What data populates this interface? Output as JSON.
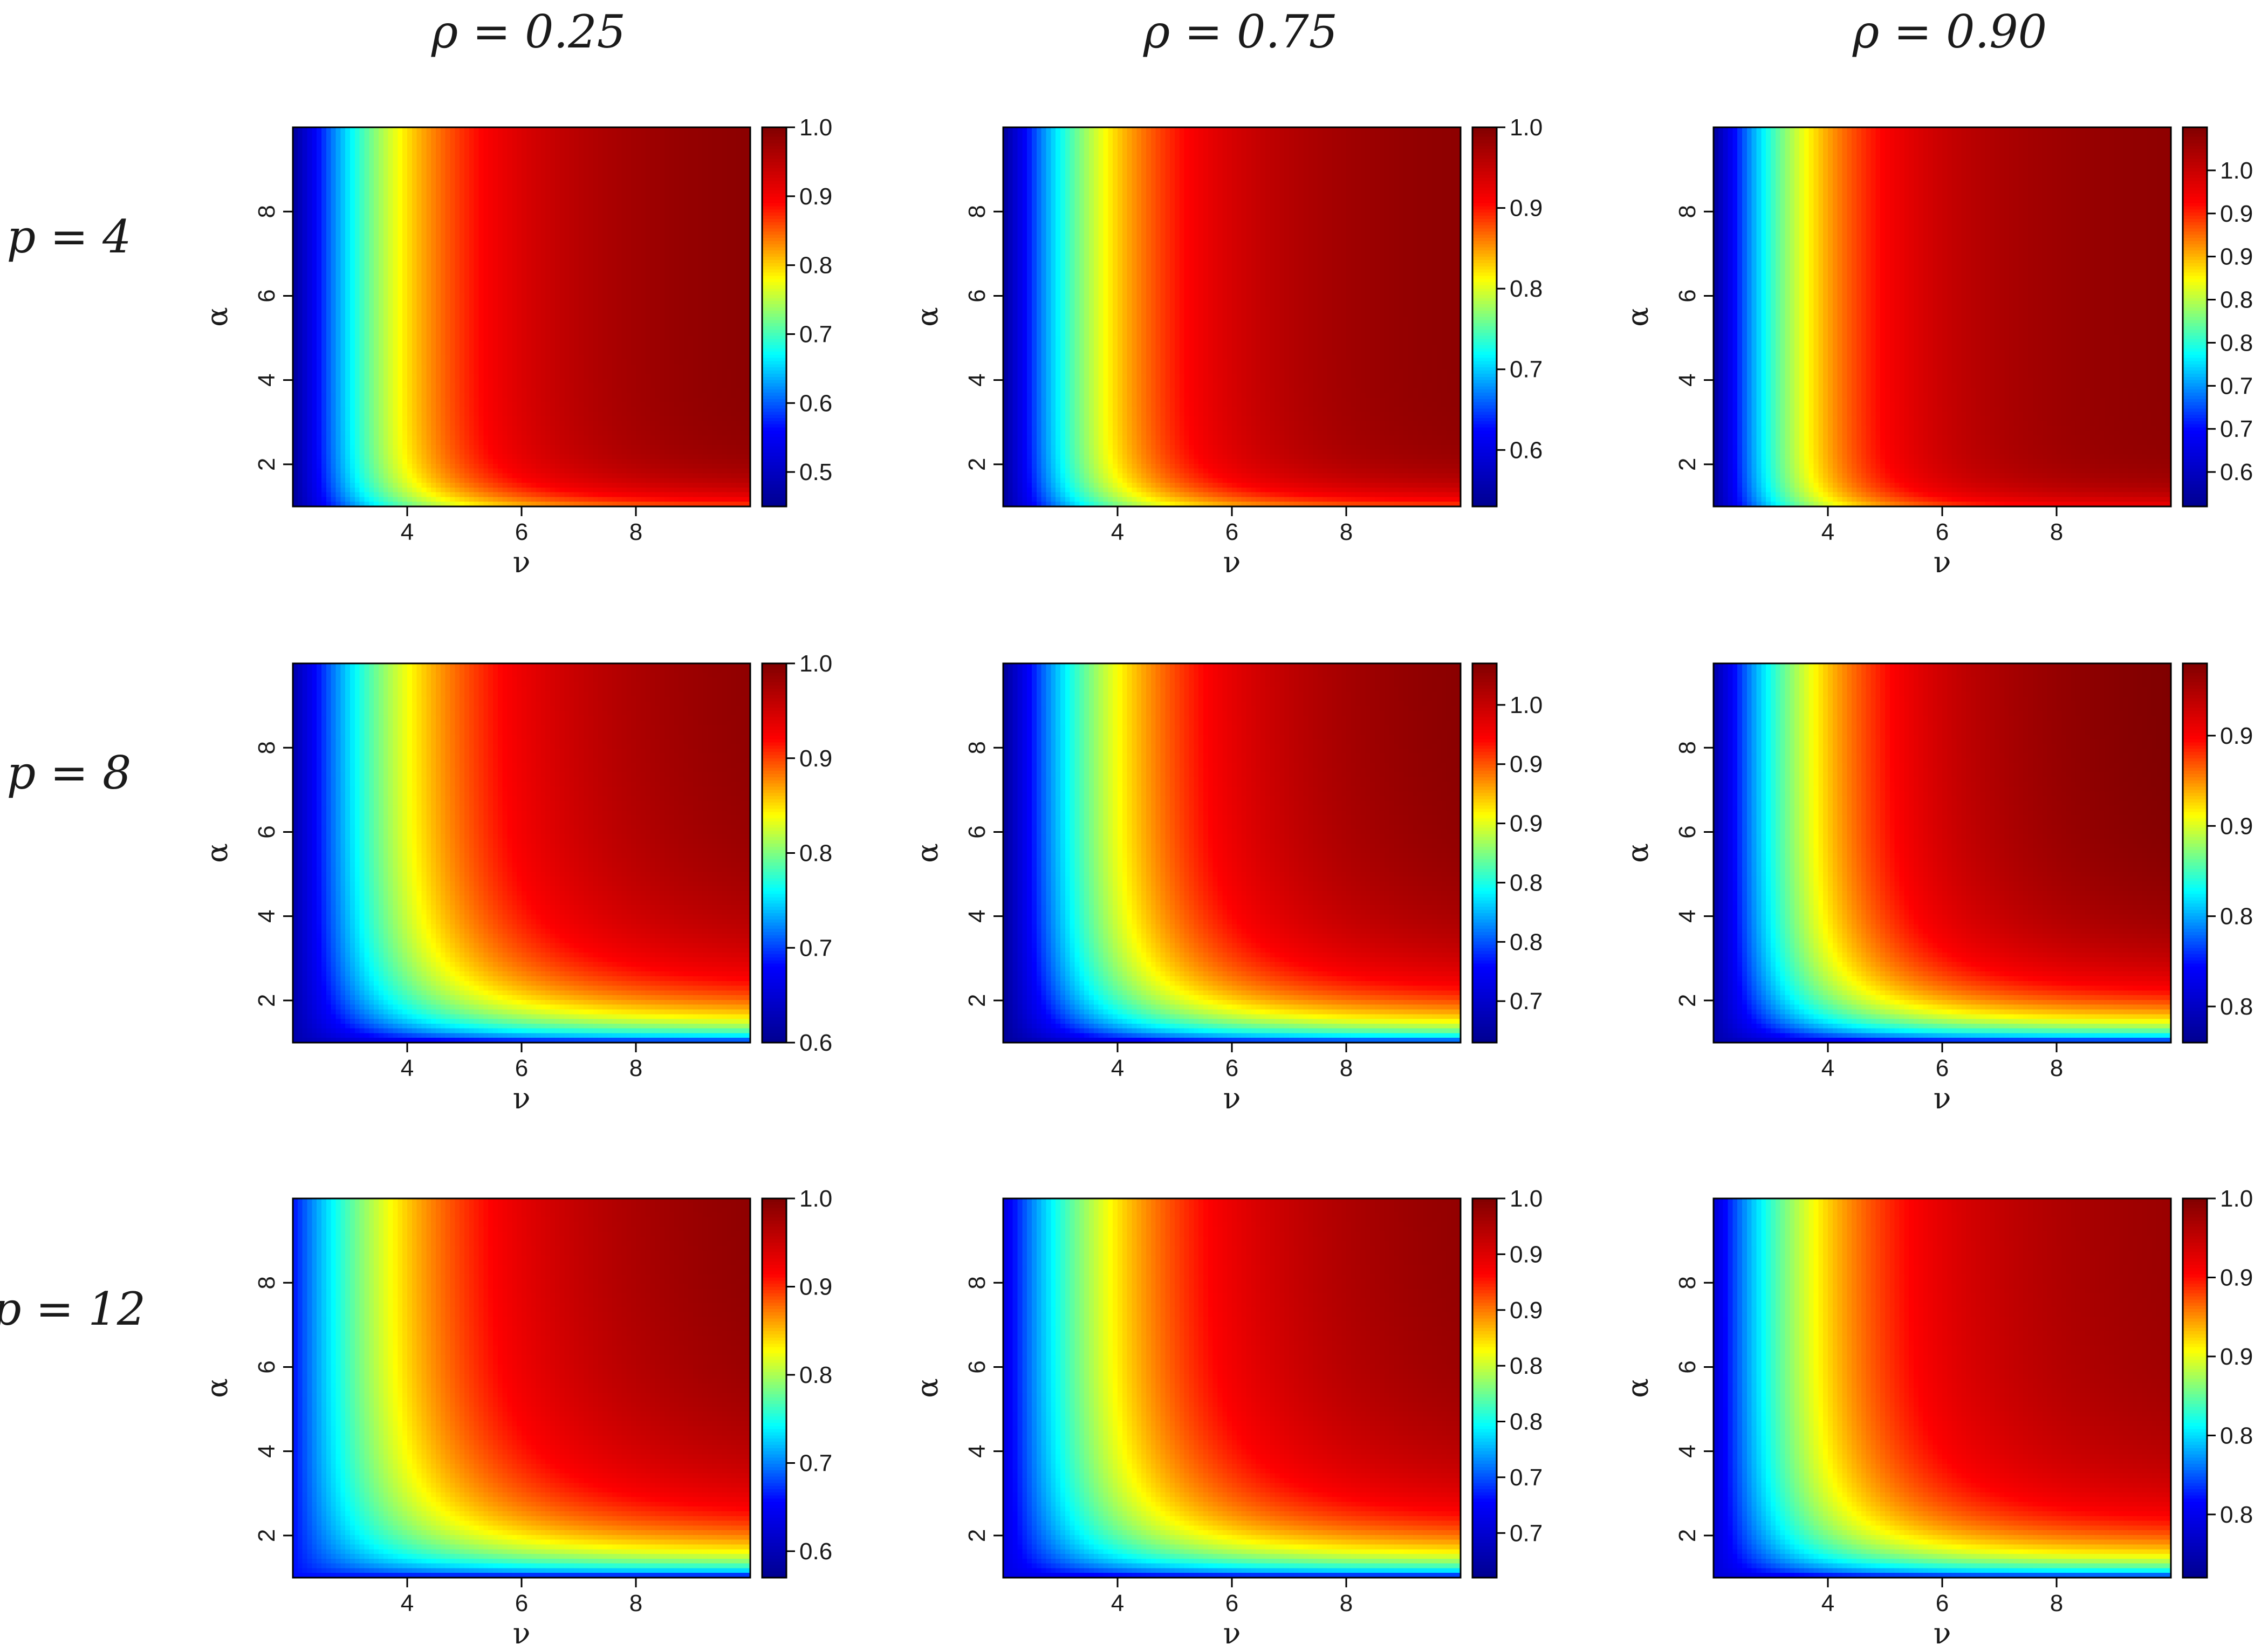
{
  "figure": {
    "columns": [
      "ρ = 0.25",
      "ρ = 0.75",
      "ρ = 0.90"
    ],
    "rows": [
      "p = 4",
      "p = 8",
      "p = 12"
    ]
  },
  "colors": {
    "colormap": [
      "#00008f",
      "#0000ff",
      "#00ffff",
      "#ffff00",
      "#ff0000",
      "#800000"
    ],
    "frame": "#000000",
    "background": "#ffffff"
  },
  "chart_data": [
    {
      "type": "heatmap",
      "row": "p = 4",
      "column": "ρ = 0.25",
      "xlabel": "ν",
      "ylabel": "α",
      "x_range": [
        2,
        10
      ],
      "y_range": [
        1,
        10
      ],
      "x_ticks": [
        "4",
        "6",
        "8"
      ],
      "y_ticks": [
        "2",
        "4",
        "6",
        "8"
      ],
      "colorbar": {
        "ticks": [
          "0.5",
          "0.6",
          "0.7",
          "0.8",
          "0.9",
          "1.0"
        ],
        "tick_values": [
          0.5,
          0.6,
          0.7,
          0.8,
          0.9,
          1.0
        ],
        "min": 0.45,
        "max": 1.0
      },
      "corner_values": {
        "nu2_alpha10": 0.46,
        "nu10_alpha10": 0.99,
        "nu10_alpha1": 0.86
      },
      "nu_half": 2.1,
      "alpha_half": 0.5,
      "alpha_floor": 0.0
    },
    {
      "type": "heatmap",
      "row": "p = 4",
      "column": "ρ = 0.75",
      "xlabel": "ν",
      "ylabel": "α",
      "x_range": [
        2,
        10
      ],
      "y_range": [
        1,
        10
      ],
      "x_ticks": [
        "4",
        "6",
        "8"
      ],
      "y_ticks": [
        "2",
        "4",
        "6",
        "8"
      ],
      "colorbar": {
        "ticks": [
          "0.6",
          "0.7",
          "0.8",
          "0.9",
          "1.0"
        ],
        "tick_values": [
          0.6,
          0.7,
          0.8,
          0.9,
          1.0
        ],
        "min": 0.53,
        "max": 1.0
      },
      "corner_values": {
        "nu2_alpha10": 0.54,
        "nu10_alpha10": 0.99,
        "nu10_alpha1": 0.88
      },
      "nu_half": 2.0,
      "alpha_half": 0.5,
      "alpha_floor": 0.0
    },
    {
      "type": "heatmap",
      "row": "p = 4",
      "column": "ρ = 0.90",
      "xlabel": "ν",
      "ylabel": "α",
      "x_range": [
        2,
        10
      ],
      "y_range": [
        1,
        10
      ],
      "x_ticks": [
        "4",
        "6",
        "8"
      ],
      "y_ticks": [
        "2",
        "4",
        "6",
        "8"
      ],
      "colorbar": {
        "ticks": [
          "0.6",
          "0.7",
          "0.7",
          "0.8",
          "0.8",
          "0.9",
          "0.9",
          "1.0"
        ],
        "tick_values": [
          0.6,
          0.65,
          0.7,
          0.75,
          0.8,
          0.85,
          0.9,
          0.95
        ],
        "min": 0.56,
        "max": 1.0
      },
      "corner_values": {
        "nu2_alpha10": 0.57,
        "nu10_alpha10": 0.99,
        "nu10_alpha1": 0.92
      },
      "nu_half": 1.8,
      "alpha_half": 0.4,
      "alpha_floor": 0.0
    },
    {
      "type": "heatmap",
      "row": "p = 8",
      "column": "ρ = 0.25",
      "xlabel": "ν",
      "ylabel": "α",
      "x_range": [
        2,
        10
      ],
      "y_range": [
        1,
        10
      ],
      "x_ticks": [
        "4",
        "6",
        "8"
      ],
      "y_ticks": [
        "2",
        "4",
        "6",
        "8"
      ],
      "colorbar": {
        "ticks": [
          "0.6",
          "0.7",
          "0.8",
          "0.9",
          "1.0"
        ],
        "tick_values": [
          0.6,
          0.7,
          0.8,
          0.9,
          1.0
        ],
        "min": 0.6,
        "max": 1.0
      },
      "corner_values": {
        "nu2_alpha10": 0.62,
        "nu10_alpha10": 0.99,
        "nu10_alpha1": 0.64
      },
      "nu_half": 2.4,
      "alpha_half": 1.5,
      "alpha_floor": 0.35
    },
    {
      "type": "heatmap",
      "row": "p = 8",
      "column": "ρ = 0.75",
      "xlabel": "ν",
      "ylabel": "α",
      "x_range": [
        2,
        10
      ],
      "y_range": [
        1,
        10
      ],
      "x_ticks": [
        "4",
        "6",
        "8"
      ],
      "y_ticks": [
        "2",
        "4",
        "6",
        "8"
      ],
      "colorbar": {
        "ticks": [
          "0.7",
          "0.8",
          "0.8",
          "0.9",
          "0.9",
          "1.0"
        ],
        "tick_values": [
          0.7,
          0.75,
          0.8,
          0.85,
          0.9,
          0.95
        ],
        "min": 0.665,
        "max": 0.985
      },
      "corner_values": {
        "nu2_alpha10": 0.67,
        "nu10_alpha10": 0.98,
        "nu10_alpha1": 0.7
      },
      "nu_half": 2.3,
      "alpha_half": 1.4,
      "alpha_floor": 0.35
    },
    {
      "type": "heatmap",
      "row": "p = 8",
      "column": "ρ = 0.90",
      "xlabel": "ν",
      "ylabel": "α",
      "x_range": [
        2,
        10
      ],
      "y_range": [
        1,
        10
      ],
      "x_ticks": [
        "4",
        "6",
        "8"
      ],
      "y_ticks": [
        "2",
        "4",
        "6",
        "8"
      ],
      "colorbar": {
        "ticks": [
          "0.8",
          "0.8",
          "0.9",
          "0.9"
        ],
        "tick_values": [
          0.8,
          0.85,
          0.9,
          0.95
        ],
        "min": 0.78,
        "max": 0.99
      },
      "corner_values": {
        "nu2_alpha10": 0.79,
        "nu10_alpha10": 0.99,
        "nu10_alpha1": 0.8
      },
      "nu_half": 2.1,
      "alpha_half": 1.3,
      "alpha_floor": 0.3
    },
    {
      "type": "heatmap",
      "row": "p = 12",
      "column": "ρ = 0.25",
      "xlabel": "ν",
      "ylabel": "α",
      "x_range": [
        2,
        10
      ],
      "y_range": [
        1,
        10
      ],
      "x_ticks": [
        "4",
        "6",
        "8"
      ],
      "y_ticks": [
        "2",
        "4",
        "6",
        "8"
      ],
      "colorbar": {
        "ticks": [
          "0.6",
          "0.7",
          "0.8",
          "0.9",
          "1.0"
        ],
        "tick_values": [
          0.6,
          0.7,
          0.8,
          0.9,
          1.0
        ],
        "min": 0.57,
        "max": 1.0
      },
      "corner_values": {
        "nu2_alpha10": 0.66,
        "nu10_alpha10": 0.99,
        "nu10_alpha1": 0.58
      },
      "nu_half": 2.6,
      "alpha_half": 1.7,
      "alpha_floor": 0.45
    },
    {
      "type": "heatmap",
      "row": "p = 12",
      "column": "ρ = 0.75",
      "xlabel": "ν",
      "ylabel": "α",
      "x_range": [
        2,
        10
      ],
      "y_range": [
        1,
        10
      ],
      "x_ticks": [
        "4",
        "6",
        "8"
      ],
      "y_ticks": [
        "2",
        "4",
        "6",
        "8"
      ],
      "colorbar": {
        "ticks": [
          "0.7",
          "0.7",
          "0.8",
          "0.8",
          "0.9",
          "0.9",
          "1.0"
        ],
        "tick_values": [
          0.7,
          0.75,
          0.8,
          0.85,
          0.9,
          0.95,
          1.0
        ],
        "min": 0.66,
        "max": 1.0
      },
      "corner_values": {
        "nu2_alpha10": 0.71,
        "nu10_alpha10": 0.99,
        "nu10_alpha1": 0.67
      },
      "nu_half": 2.5,
      "alpha_half": 1.6,
      "alpha_floor": 0.45
    },
    {
      "type": "heatmap",
      "row": "p = 12",
      "column": "ρ = 0.90",
      "xlabel": "ν",
      "ylabel": "α",
      "x_range": [
        2,
        10
      ],
      "y_range": [
        1,
        10
      ],
      "x_ticks": [
        "4",
        "6",
        "8"
      ],
      "y_ticks": [
        "2",
        "4",
        "6",
        "8"
      ],
      "colorbar": {
        "ticks": [
          "0.8",
          "0.8",
          "0.9",
          "0.9",
          "1.0"
        ],
        "tick_values": [
          0.8,
          0.85,
          0.9,
          0.95,
          1.0
        ],
        "min": 0.76,
        "max": 1.0
      },
      "corner_values": {
        "nu2_alpha10": 0.79,
        "nu10_alpha10": 0.99,
        "nu10_alpha1": 0.78
      },
      "nu_half": 2.2,
      "alpha_half": 1.4,
      "alpha_floor": 0.4
    }
  ]
}
